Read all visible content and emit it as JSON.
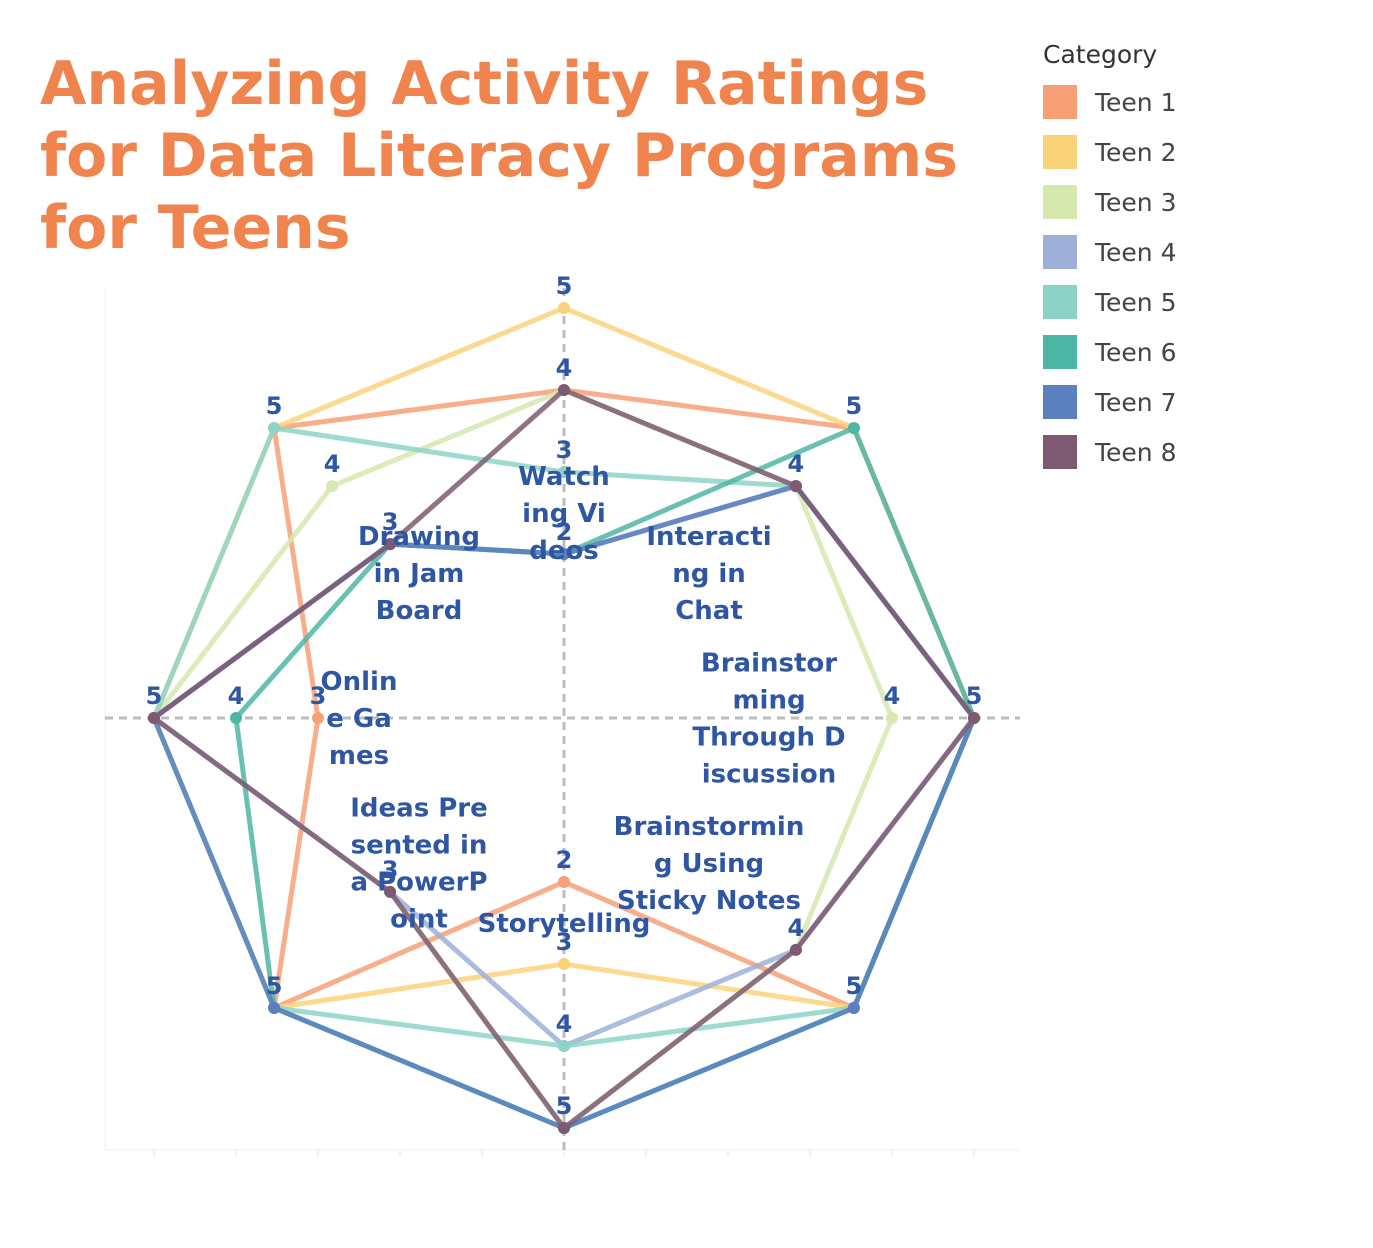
{
  "chart_data": {
    "type": "radar",
    "title": "Analyzing Activity Ratings for Data Literacy Programs for Teens",
    "legend_title": "Category",
    "legend_position": "top-right",
    "categories": [
      "Watching Videos",
      "Interacting in Chat",
      "Brainstorming Through Discussion",
      "Brainstorming Using Sticky Notes",
      "Storytelling",
      "Ideas Presented in a PowerPoint",
      "Online Games",
      "Drawing in Jam Board"
    ],
    "category_label_lines": [
      [
        "Watch",
        "ing Vi",
        "deos"
      ],
      [
        "Interacti",
        "ng in",
        "Chat"
      ],
      [
        "Brainstor",
        "ming",
        "Through D",
        "iscussion"
      ],
      [
        "Brainstormin",
        "g Using",
        "Sticky Notes"
      ],
      [
        "Storytelling"
      ],
      [
        "Ideas Pre",
        "sented in",
        "a PowerP",
        "oint"
      ],
      [
        "Onlin",
        "e Ga",
        "mes"
      ],
      [
        "Drawing",
        "in Jam",
        "Board"
      ]
    ],
    "rlim": [
      0,
      5
    ],
    "series": [
      {
        "name": "Teen 1",
        "color": "#f7a076",
        "values": [
          4,
          5,
          5,
          5,
          2,
          5,
          3,
          5
        ]
      },
      {
        "name": "Teen 2",
        "color": "#fad27a",
        "values": [
          5,
          5,
          5,
          5,
          3,
          5,
          5,
          5
        ]
      },
      {
        "name": "Teen 3",
        "color": "#d6e8ae",
        "values": [
          4,
          4,
          4,
          4,
          5,
          3,
          5,
          4
        ]
      },
      {
        "name": "Teen 4",
        "color": "#9eb0d8",
        "values": [
          2,
          4,
          5,
          4,
          4,
          3,
          5,
          3
        ]
      },
      {
        "name": "Teen 5",
        "color": "#8dd3c5",
        "values": [
          3,
          4,
          5,
          5,
          4,
          5,
          5,
          5
        ]
      },
      {
        "name": "Teen 6",
        "color": "#4db6a4",
        "values": [
          2,
          5,
          5,
          5,
          5,
          5,
          4,
          3
        ]
      },
      {
        "name": "Teen 7",
        "color": "#5b7fbf",
        "values": [
          2,
          4,
          5,
          5,
          5,
          5,
          5,
          3
        ]
      },
      {
        "name": "Teen 8",
        "color": "#7e5a72",
        "values": [
          4,
          4,
          5,
          4,
          5,
          3,
          5,
          3
        ]
      }
    ]
  }
}
